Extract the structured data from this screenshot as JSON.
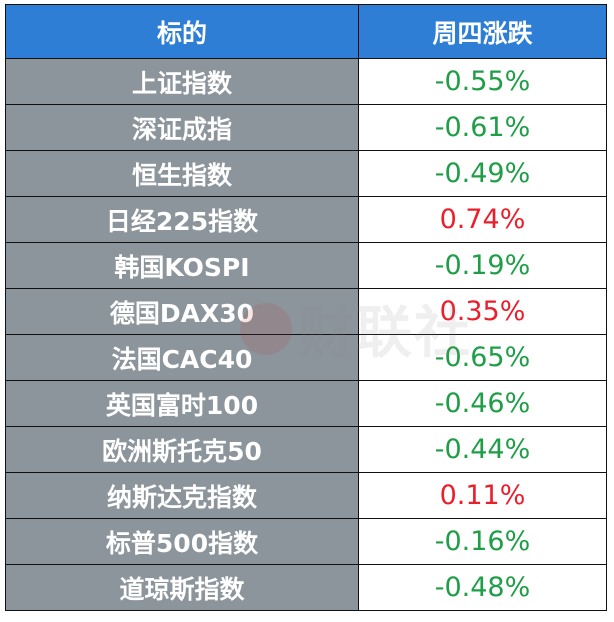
{
  "header": {
    "col1": "标的",
    "col2": "周四涨跌"
  },
  "rows": [
    {
      "name": "上证指数",
      "change": "-0.55%"
    },
    {
      "name": "深证成指",
      "change": "-0.61%"
    },
    {
      "name": "恒生指数",
      "change": "-0.49%"
    },
    {
      "name": "日经225指数",
      "change": "0.74%"
    },
    {
      "name": "韩国KOSPI",
      "change": "-0.19%"
    },
    {
      "name": "德国DAX30",
      "change": "0.35%"
    },
    {
      "name": "法国CAC40",
      "change": "-0.65%"
    },
    {
      "name": "英国富时100",
      "change": "-0.46%"
    },
    {
      "name": "欧洲斯托克50",
      "change": "-0.44%"
    },
    {
      "name": "纳斯达克指数",
      "change": "0.11%"
    },
    {
      "name": "标普500指数",
      "change": "-0.16%"
    },
    {
      "name": "道琼斯指数",
      "change": "-0.48%"
    }
  ],
  "watermark": {
    "text": "财联社"
  },
  "colors": {
    "header_bg": "#2e7ed6",
    "name_bg": "#8c949c",
    "positive": "#ea1f2b",
    "negative": "#1e9e46"
  }
}
